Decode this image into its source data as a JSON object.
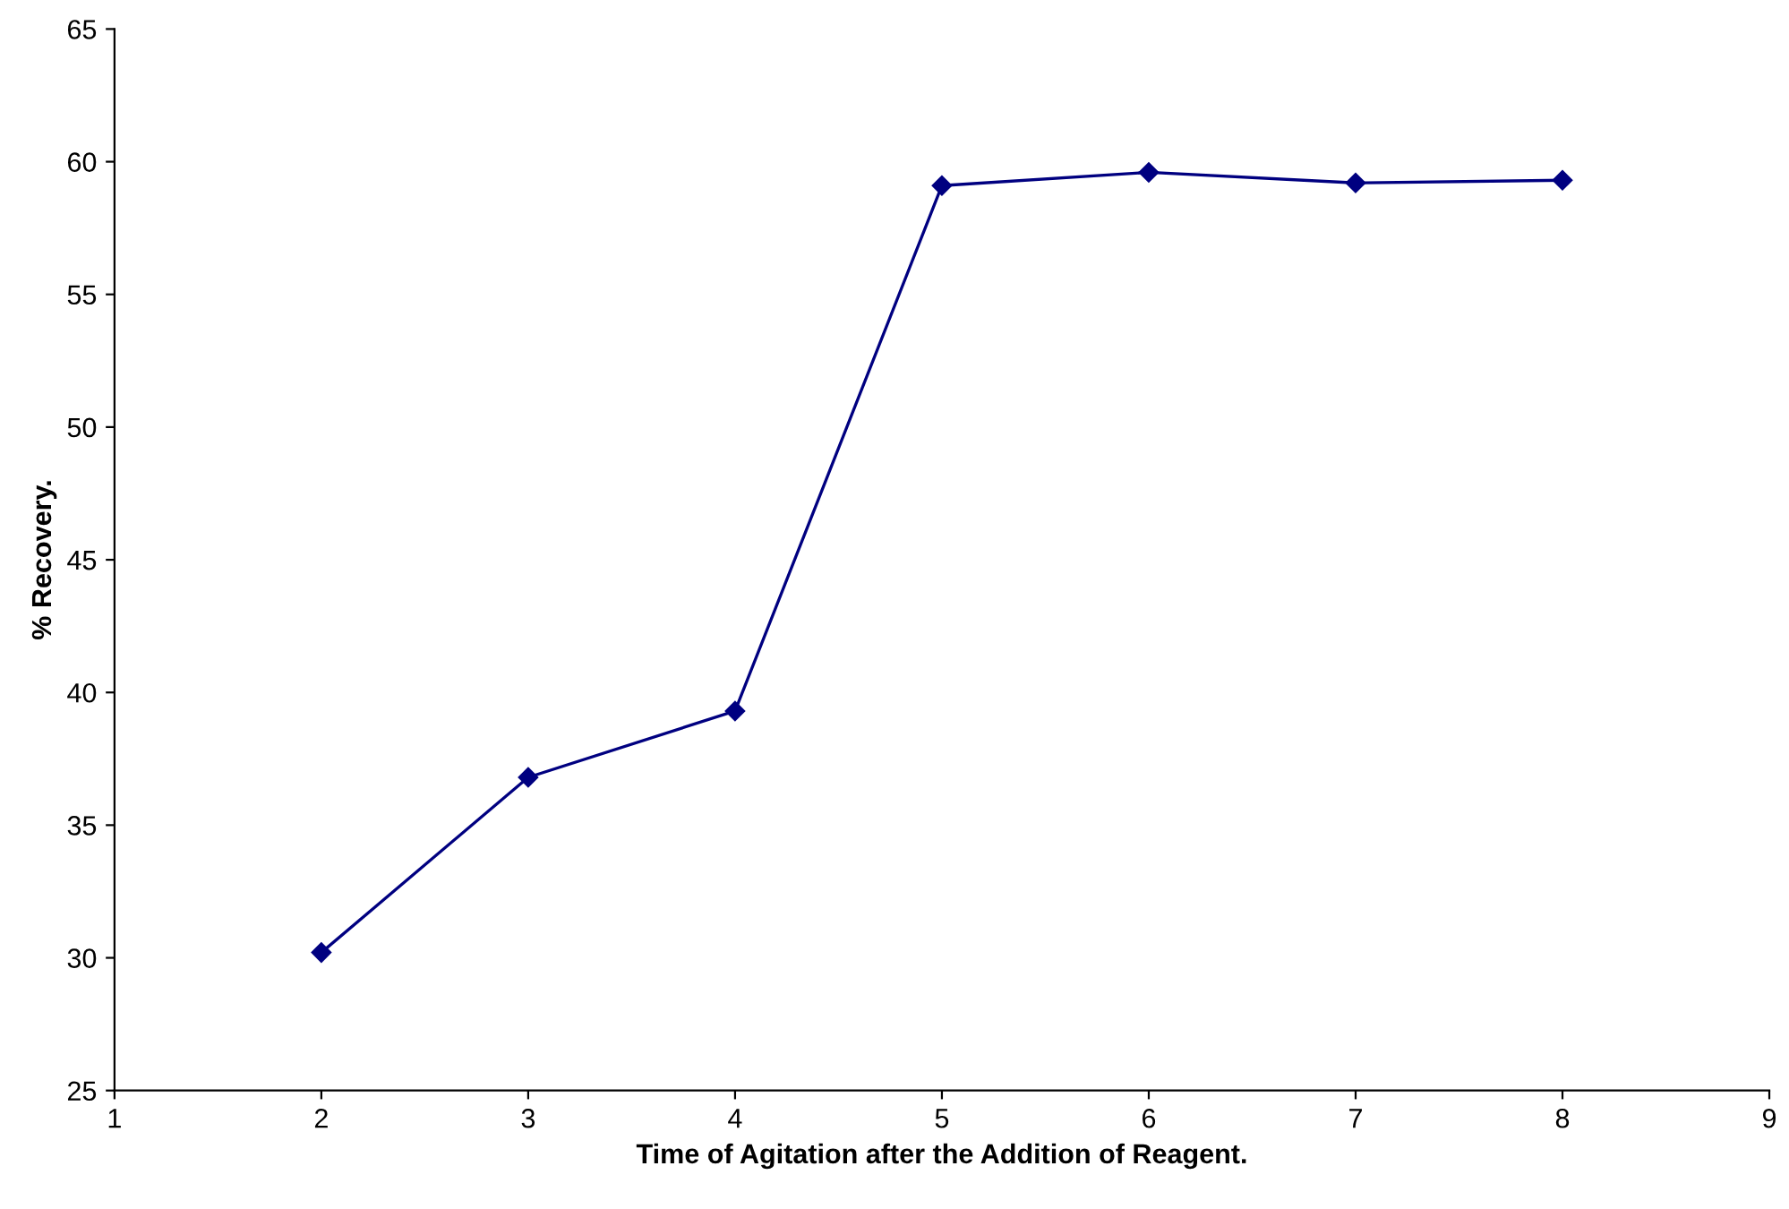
{
  "chart_data": {
    "type": "line",
    "xlabel": "Time of Agitation after the Addition of Reagent.",
    "ylabel": "% Recovery.",
    "x": [
      2,
      3,
      4,
      5,
      6,
      7,
      8
    ],
    "series": [
      {
        "color": "#000080",
        "values": [
          30.2,
          36.8,
          39.3,
          59.1,
          59.6,
          59.2,
          59.3
        ]
      }
    ],
    "xlim": [
      1,
      9
    ],
    "xticks": [
      1,
      2,
      3,
      4,
      5,
      6,
      7,
      8,
      9
    ],
    "ylim": [
      25,
      65
    ],
    "yticks": [
      25,
      30,
      35,
      40,
      45,
      50,
      55,
      60,
      65
    ],
    "grid": false,
    "marker": "diamond",
    "line_style": "solid"
  }
}
